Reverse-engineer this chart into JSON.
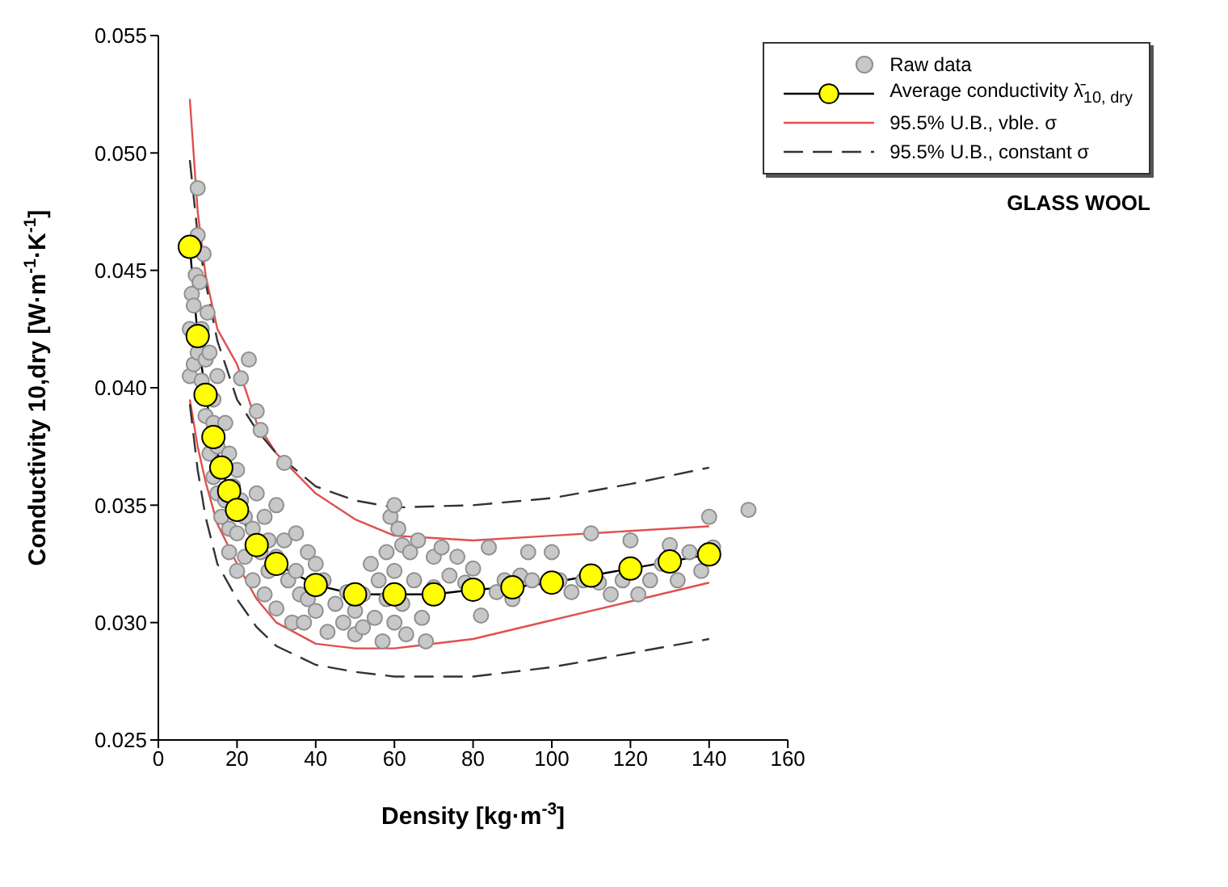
{
  "chart_data": {
    "type": "scatter",
    "xlabel": "Density [kg·m$^{-3}$]",
    "ylabel": "Conductivity 10,dry [W·m$^{-1}$·K$^{-1}$]",
    "xlim": [
      0,
      160
    ],
    "xticks": [
      0,
      20,
      40,
      60,
      80,
      100,
      120,
      140,
      160
    ],
    "ylim": [
      0.025,
      0.055
    ],
    "yticks": [
      0.025,
      {
        "value": 0.03,
        "label": "0.030"
      },
      0.035,
      {
        "value": 0.04,
        "label": "0.040"
      },
      0.045,
      {
        "value": 0.05,
        "label": "0.050"
      },
      0.055
    ],
    "grid": false,
    "legend": "top right",
    "annotations": [
      "GLASS WOOL"
    ],
    "series": [
      {
        "name": "Raw data",
        "marker": "circle",
        "color": "#c8c8c8",
        "x": [
          8,
          8,
          8.5,
          9,
          9,
          9.5,
          10,
          10,
          10,
          10.5,
          11,
          11,
          11.5,
          12,
          12,
          12.5,
          13,
          13,
          14,
          14,
          14,
          15,
          15,
          15,
          16,
          17,
          17,
          18,
          18,
          18,
          19,
          20,
          20,
          20,
          21,
          21,
          22,
          22,
          23,
          24,
          24,
          25,
          25,
          26,
          26,
          27,
          27,
          28,
          28,
          30,
          30,
          30,
          32,
          32,
          33,
          34,
          35,
          35,
          36,
          37,
          38,
          38,
          40,
          40,
          42,
          43,
          45,
          47,
          48,
          50,
          50,
          52,
          52,
          54,
          55,
          56,
          57,
          58,
          58,
          59,
          60,
          60,
          60,
          61,
          62,
          62,
          63,
          64,
          65,
          66,
          67,
          68,
          70,
          70,
          72,
          74,
          76,
          78,
          80,
          82,
          84,
          86,
          88,
          90,
          92,
          94,
          95,
          100,
          102,
          105,
          108,
          110,
          112,
          115,
          118,
          120,
          122,
          125,
          128,
          130,
          132,
          135,
          138,
          140,
          141,
          150
        ],
        "values": [
          0.0405,
          0.0425,
          0.044,
          0.041,
          0.0435,
          0.0448,
          0.0485,
          0.0465,
          0.0415,
          0.0445,
          0.0403,
          0.0425,
          0.0457,
          0.0412,
          0.0388,
          0.0432,
          0.0415,
          0.0372,
          0.0395,
          0.0385,
          0.0362,
          0.0405,
          0.0375,
          0.0355,
          0.0345,
          0.0385,
          0.0352,
          0.0372,
          0.034,
          0.033,
          0.0358,
          0.0365,
          0.0338,
          0.0322,
          0.0404,
          0.0352,
          0.0345,
          0.0328,
          0.0412,
          0.034,
          0.0318,
          0.039,
          0.0355,
          0.0382,
          0.033,
          0.0345,
          0.0312,
          0.0335,
          0.0322,
          0.035,
          0.0328,
          0.0306,
          0.0368,
          0.0335,
          0.0318,
          0.03,
          0.0338,
          0.0322,
          0.0312,
          0.03,
          0.033,
          0.031,
          0.0325,
          0.0305,
          0.0318,
          0.0296,
          0.0308,
          0.03,
          0.0313,
          0.0295,
          0.0305,
          0.0298,
          0.0312,
          0.0325,
          0.0302,
          0.0318,
          0.0292,
          0.033,
          0.031,
          0.0345,
          0.035,
          0.0322,
          0.03,
          0.034,
          0.0333,
          0.0308,
          0.0295,
          0.033,
          0.0318,
          0.0335,
          0.0302,
          0.0292,
          0.0328,
          0.0315,
          0.0332,
          0.032,
          0.0328,
          0.0317,
          0.0323,
          0.0303,
          0.0332,
          0.0313,
          0.0318,
          0.031,
          0.032,
          0.033,
          0.0318,
          0.033,
          0.0318,
          0.0313,
          0.0318,
          0.0338,
          0.0317,
          0.0312,
          0.0318,
          0.0335,
          0.0312,
          0.0318,
          0.0325,
          0.0333,
          0.0318,
          0.033,
          0.0322,
          0.0345,
          0.0332,
          0.0348
        ]
      },
      {
        "name": "Average conductivity λ̄$_{10, dry}$",
        "type": "line",
        "marker": "circle",
        "line_style": "solid",
        "color": "#ffff00",
        "x": [
          8,
          10,
          12,
          14,
          16,
          18,
          20,
          25,
          30,
          40,
          50,
          60,
          70,
          80,
          90,
          100,
          110,
          120,
          130,
          140
        ],
        "values": [
          0.046,
          0.0422,
          0.0397,
          0.0379,
          0.0366,
          0.0356,
          0.0348,
          0.0333,
          0.0325,
          0.0316,
          0.0312,
          0.0312,
          0.0312,
          0.0314,
          0.0315,
          0.0317,
          0.032,
          0.0323,
          0.0326,
          0.0329
        ]
      },
      {
        "name": "95.5% U.B., vble. σ",
        "type": "line",
        "marker": "none",
        "line_style": "solid",
        "color": "#e05050",
        "x": [
          8,
          10,
          12,
          15,
          20,
          25,
          30,
          40,
          50,
          60,
          80,
          100,
          120,
          140
        ],
        "values": [
          0.0523,
          0.0475,
          0.0448,
          0.0425,
          0.041,
          0.0385,
          0.0372,
          0.0355,
          0.0344,
          0.0337,
          0.0335,
          0.0337,
          0.0339,
          0.0341
        ]
      },
      {
        "type": "line",
        "marker": "none",
        "line_style": "solid",
        "color": "#e05050",
        "x": [
          8,
          10,
          12,
          15,
          20,
          25,
          30,
          40,
          50,
          60,
          80,
          100,
          120,
          140
        ],
        "values": [
          0.0395,
          0.0375,
          0.036,
          0.0342,
          0.0325,
          0.031,
          0.03,
          0.0291,
          0.0289,
          0.0289,
          0.0293,
          0.0301,
          0.0309,
          0.0317
        ]
      },
      {
        "name": "95.5% U.B., constant σ",
        "type": "line",
        "marker": "none",
        "line_style": "dashed",
        "color": "#333333",
        "x": [
          8,
          10,
          12,
          15,
          20,
          25,
          30,
          40,
          50,
          60,
          80,
          100,
          120,
          140
        ],
        "values": [
          0.0497,
          0.0465,
          0.0445,
          0.042,
          0.0395,
          0.0382,
          0.0372,
          0.0358,
          0.0352,
          0.0349,
          0.035,
          0.0353,
          0.0359,
          0.0366
        ]
      },
      {
        "type": "line",
        "marker": "none",
        "line_style": "dashed",
        "color": "#333333",
        "x": [
          8,
          10,
          12,
          15,
          20,
          25,
          30,
          40,
          50,
          60,
          80,
          100,
          120,
          140
        ],
        "values": [
          0.0393,
          0.0365,
          0.0345,
          0.0325,
          0.031,
          0.0298,
          0.029,
          0.0282,
          0.0279,
          0.0277,
          0.0277,
          0.0281,
          0.0287,
          0.0293
        ]
      }
    ]
  }
}
